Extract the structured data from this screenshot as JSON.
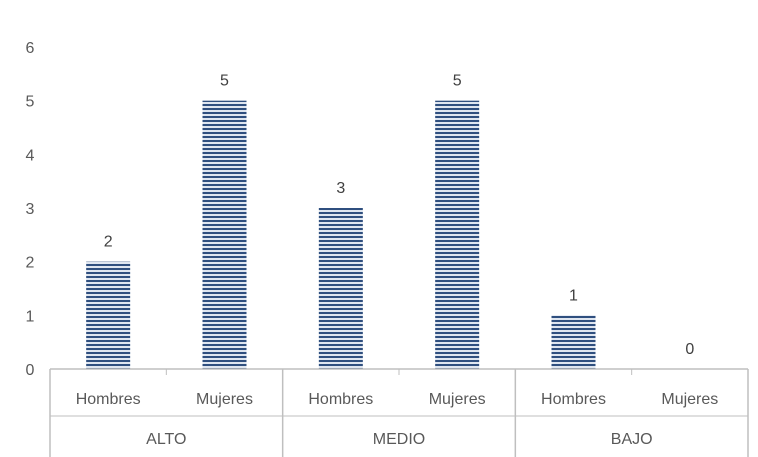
{
  "chart_data": {
    "type": "bar",
    "groups": [
      "ALTO",
      "MEDIO",
      "BAJO"
    ],
    "categories": [
      "Hombres",
      "Mujeres",
      "Hombres",
      "Mujeres",
      "Hombres",
      "Mujeres"
    ],
    "values": [
      2,
      5,
      3,
      5,
      1,
      0
    ],
    "y_ticks": [
      "0",
      "1",
      "2",
      "3",
      "4",
      "5",
      "6"
    ],
    "ylim": [
      0,
      6
    ],
    "title": "",
    "xlabel": "",
    "ylabel": "",
    "grid": false,
    "legend": "none",
    "colors": {
      "bar_dark": "#2f4f7f",
      "bar_light": "#dfe6f0",
      "axis": "#bfbfbf"
    }
  }
}
